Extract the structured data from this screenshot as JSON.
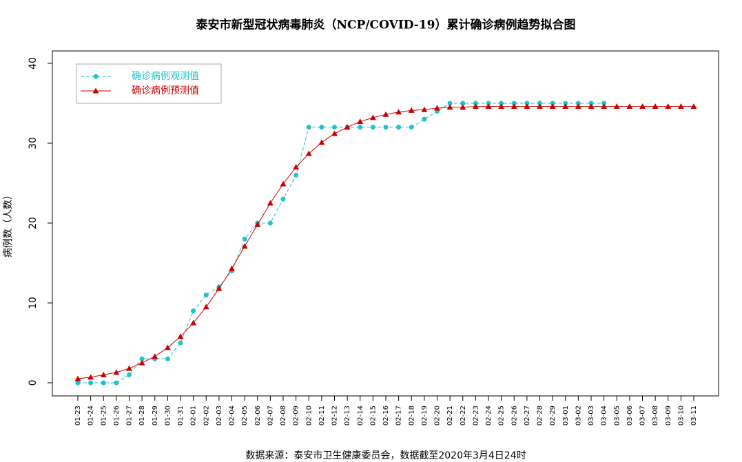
{
  "chart_data": {
    "type": "line",
    "title": "泰安市新型冠状病毒肺炎（NCP/COVID-19）累计确诊病例趋势拟合图",
    "y_label": "病例数（人数）",
    "caption": "数据来源：泰安市卫生健康委员会，数据截至2020年3月4日24时",
    "categories": [
      "01-23",
      "01-24",
      "01-25",
      "01-26",
      "01-27",
      "01-28",
      "01-29",
      "01-30",
      "01-31",
      "02-01",
      "02-02",
      "02-03",
      "02-04",
      "02-05",
      "02-06",
      "02-07",
      "02-08",
      "02-09",
      "02-10",
      "02-11",
      "02-12",
      "02-13",
      "02-14",
      "02-15",
      "02-16",
      "02-17",
      "02-18",
      "02-19",
      "02-20",
      "02-21",
      "02-22",
      "02-23",
      "02-24",
      "02-25",
      "02-26",
      "02-27",
      "02-28",
      "02-29",
      "03-01",
      "03-02",
      "03-03",
      "03-04",
      "03-05",
      "03-06",
      "03-07",
      "03-08",
      "03-09",
      "03-10",
      "03-11"
    ],
    "series": [
      {
        "name": "确诊病例观测值",
        "color": "#1fc3c9",
        "dash": true,
        "marker": "circle",
        "values": [
          0,
          0,
          0,
          0,
          1,
          3,
          3,
          3,
          5,
          9,
          11,
          12,
          14,
          18,
          20,
          20,
          23,
          26,
          32,
          32,
          32,
          32,
          32,
          32,
          32,
          32,
          32,
          33,
          34,
          35,
          35,
          35,
          35,
          35,
          35,
          35,
          35,
          35,
          35,
          35,
          35,
          35,
          null,
          null,
          null,
          null,
          null,
          null,
          null
        ]
      },
      {
        "name": "确诊病例预测值",
        "color": "#cc0000",
        "dash": false,
        "marker": "triangle",
        "values": [
          0.5,
          0.7,
          1.0,
          1.3,
          1.8,
          2.5,
          3.3,
          4.4,
          5.8,
          7.5,
          9.5,
          11.8,
          14.3,
          17.1,
          19.8,
          22.5,
          24.9,
          27.0,
          28.7,
          30.1,
          31.2,
          32.0,
          32.7,
          33.2,
          33.6,
          33.9,
          34.1,
          34.2,
          34.4,
          34.5,
          34.5,
          34.6,
          34.6,
          34.6,
          34.6,
          34.6,
          34.6,
          34.6,
          34.6,
          34.6,
          34.6,
          34.6,
          34.6,
          34.6,
          34.6,
          34.6,
          34.6,
          34.6,
          34.6
        ]
      }
    ],
    "ylim": [
      -1.64,
      41.55
    ],
    "yticks": [
      0,
      10,
      20,
      30,
      40
    ],
    "legend": "top-left"
  }
}
